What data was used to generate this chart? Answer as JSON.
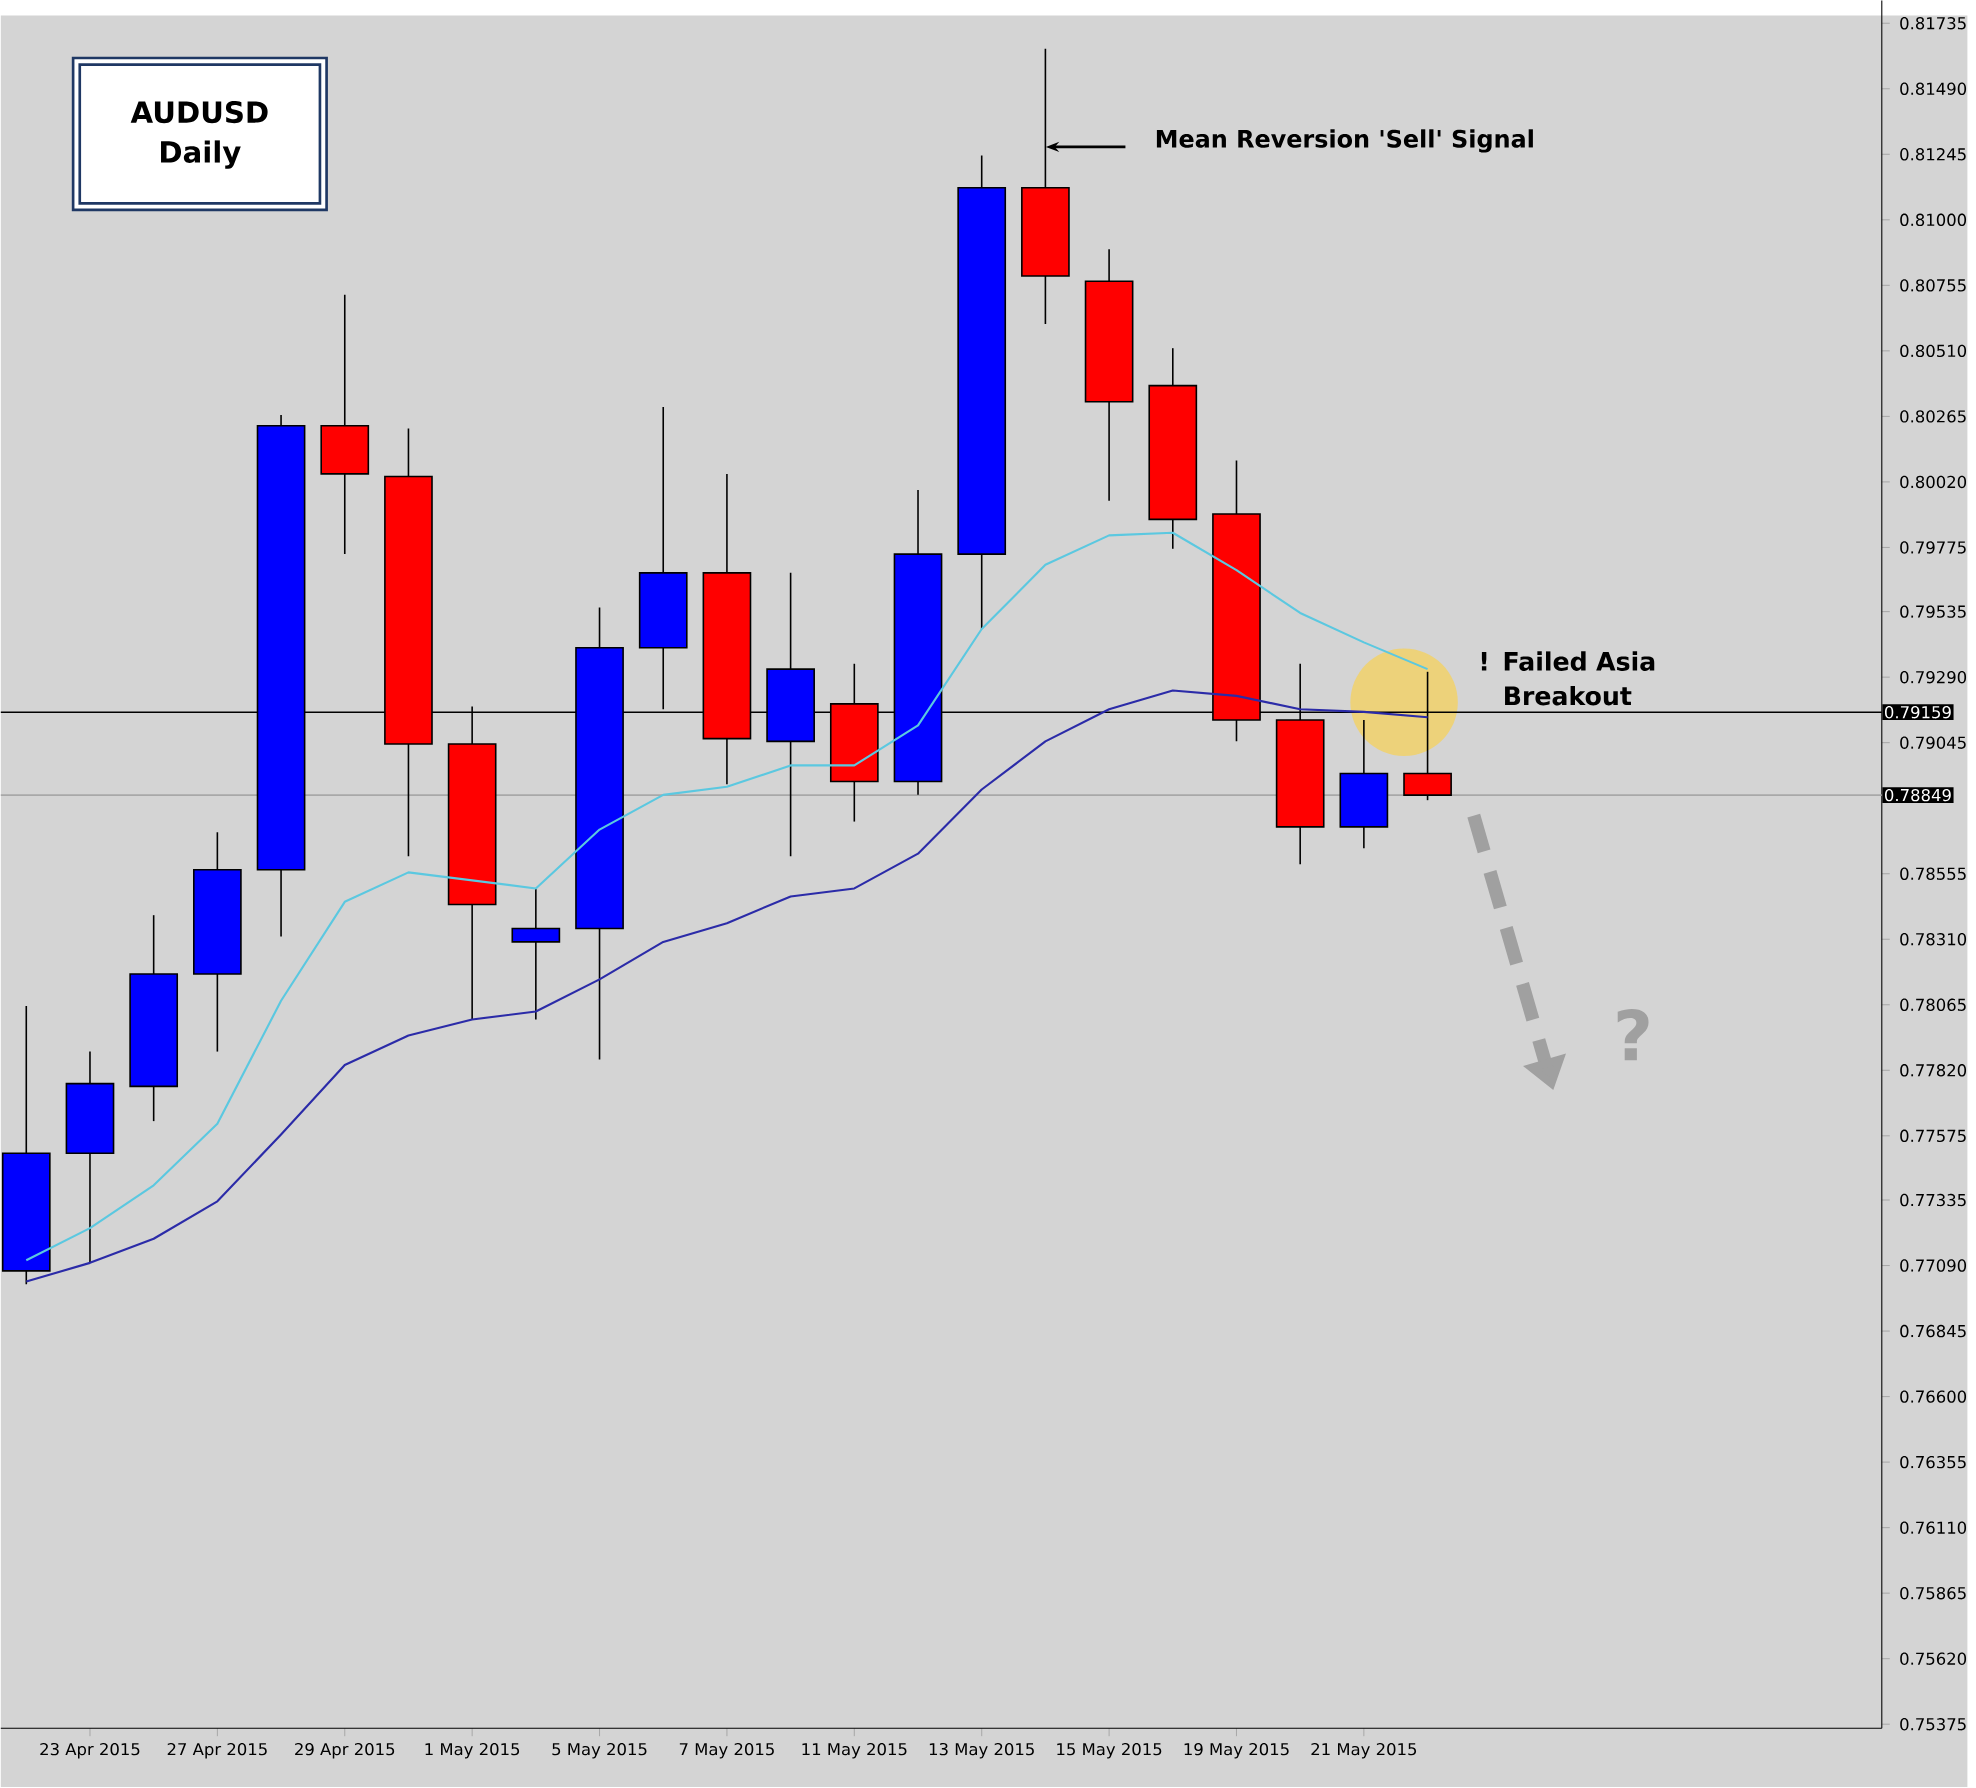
{
  "chart_data": {
    "type": "candlestick",
    "title": "AUDUSD",
    "subtitle": "Daily",
    "categories": [
      null,
      "23 Apr 2015",
      null,
      "27 Apr 2015",
      null,
      "29 Apr 2015",
      null,
      "1 May 2015",
      null,
      "5 May 2015",
      null,
      "7 May 2015",
      null,
      "11 May 2015",
      null,
      "13 May 2015",
      null,
      "15 May 2015",
      null,
      "19 May 2015",
      null,
      "21 May 2015",
      null
    ],
    "ohlc": [
      [
        0.7707,
        0.7806,
        0.7702,
        0.7751
      ],
      [
        0.7751,
        0.7789,
        0.771,
        0.7777
      ],
      [
        0.7776,
        0.784,
        0.7763,
        0.7818
      ],
      [
        0.7818,
        0.7871,
        0.7789,
        0.7857
      ],
      [
        0.7857,
        0.8027,
        0.7832,
        0.8023
      ],
      [
        0.8023,
        0.8072,
        0.7975,
        0.8005
      ],
      [
        0.8004,
        0.8022,
        0.7862,
        0.7904
      ],
      [
        0.7904,
        0.7918,
        0.7801,
        0.7844
      ],
      [
        0.783,
        0.785,
        0.7801,
        0.7835
      ],
      [
        0.7835,
        0.7955,
        0.7786,
        0.794
      ],
      [
        0.794,
        0.803,
        0.7917,
        0.7968
      ],
      [
        0.7968,
        0.8005,
        0.7889,
        0.7906
      ],
      [
        0.7905,
        0.7968,
        0.7862,
        0.7932
      ],
      [
        0.7919,
        0.7934,
        0.7875,
        0.789
      ],
      [
        0.789,
        0.7999,
        0.7885,
        0.7975
      ],
      [
        0.7975,
        0.8124,
        0.7947,
        0.8112
      ],
      [
        0.8112,
        0.8164,
        0.8061,
        0.8079
      ],
      [
        0.8077,
        0.8089,
        0.7995,
        0.8032
      ],
      [
        0.8038,
        0.8052,
        0.7977,
        0.7988
      ],
      [
        0.799,
        0.801,
        0.7905,
        0.7913
      ],
      [
        0.7913,
        0.7934,
        0.7859,
        0.7873
      ],
      [
        0.7873,
        0.7913,
        0.7865,
        0.7893
      ],
      [
        0.7893,
        0.7931,
        0.7883,
        0.78849
      ]
    ],
    "colors": [
      "#0000ff",
      "#0000ff",
      "#0000ff",
      "#0000ff",
      "#0000ff",
      "#ff0000",
      "#ff0000",
      "#ff0000",
      "#0000ff",
      "#0000ff",
      "#0000ff",
      "#ff0000",
      "#0000ff",
      "#ff0000",
      "#0000ff",
      "#0000ff",
      "#ff0000",
      "#ff0000",
      "#ff0000",
      "#ff0000",
      "#ff0000",
      "#0000ff",
      "#ff0000"
    ],
    "series": [
      {
        "type": "line",
        "color": "#5bc8e0",
        "values": [
          0.7711,
          0.7723,
          0.7739,
          0.7762,
          0.7808,
          0.7845,
          0.7856,
          0.7853,
          0.785,
          0.7872,
          0.7885,
          0.7888,
          0.7896,
          0.7896,
          0.7911,
          0.7947,
          0.7971,
          0.7982,
          0.7983,
          0.7969,
          0.7953,
          0.7942,
          0.7932
        ]
      },
      {
        "type": "line",
        "color": "#2b2ba8",
        "values": [
          0.7703,
          0.771,
          0.7719,
          0.7733,
          0.7758,
          0.7784,
          0.7795,
          0.7801,
          0.7804,
          0.7816,
          0.783,
          0.7837,
          0.7847,
          0.785,
          0.7863,
          0.7887,
          0.7905,
          0.7917,
          0.7924,
          0.7922,
          0.7917,
          0.7916,
          0.7914
        ]
      }
    ],
    "ylim": [
      0.7536,
      0.8182
    ],
    "yticks": [
      0.81735,
      {
        "value": 0.8149,
        "label": "0.81490"
      },
      0.81245,
      {
        "value": 0.81,
        "label": "0.81000"
      },
      0.80755,
      {
        "value": 0.8051,
        "label": "0.80510"
      },
      0.80265,
      {
        "value": 0.8002,
        "label": "0.80020"
      },
      0.79775,
      0.79535,
      {
        "value": 0.7929,
        "label": "0.79290"
      },
      0.79045,
      0.78555,
      {
        "value": 0.7831,
        "label": "0.78310"
      },
      0.78065,
      {
        "value": 0.7782,
        "label": "0.77820"
      },
      0.77575,
      0.77335,
      {
        "value": 0.7709,
        "label": "0.77090"
      },
      0.76845,
      {
        "value": 0.766,
        "label": "0.76600"
      },
      0.76355,
      {
        "value": 0.7611,
        "label": "0.76110"
      },
      0.75865,
      {
        "value": 0.7562,
        "label": "0.75620"
      },
      0.75375
    ],
    "ref_lines": [
      {
        "axis": "y",
        "value": 0.79159,
        "label": "0.79159",
        "color": "#000000"
      },
      {
        "axis": "y",
        "value": 0.78849,
        "label": "0.78849",
        "color": "#a8a8a8"
      }
    ],
    "annotations": [
      "Mean Reversion 'Sell' Signal",
      "! Failed Asia Breakout",
      "?"
    ]
  }
}
